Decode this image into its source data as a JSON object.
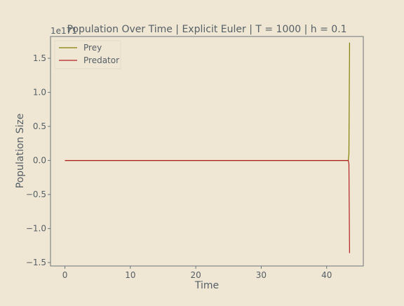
{
  "chart_data": {
    "type": "line",
    "title": "Population Over Time | Explicit Euler | T = 1000 | h = 0.1",
    "xlabel": "Time",
    "ylabel": "Population Size",
    "y_offset_text": "1e171",
    "xlim": [
      -2.2,
      45.6
    ],
    "ylim": [
      -1.55,
      1.82
    ],
    "x_ticks": [
      0,
      10,
      20,
      30,
      40
    ],
    "x_tick_labels": [
      "0",
      "10",
      "20",
      "30",
      "40"
    ],
    "y_ticks": [
      1.5,
      1.0,
      0.5,
      0.0,
      -0.5,
      -1.0,
      -1.5
    ],
    "y_tick_labels": [
      "1.5",
      "1.0",
      "0.5",
      "0.0",
      "−0.5",
      "−1.0",
      "−1.5"
    ],
    "grid": false,
    "legend_position": "upper-left",
    "series": [
      {
        "name": "Prey",
        "color": "#808000",
        "x": [
          0,
          43.3,
          43.4,
          43.5
        ],
        "y": [
          0.0,
          0.0,
          0.1,
          1.73
        ]
      },
      {
        "name": "Predator",
        "color": "#b22222",
        "x": [
          0,
          43.3,
          43.4,
          43.5
        ],
        "y": [
          0.0,
          0.0,
          -0.05,
          -1.36
        ]
      }
    ]
  }
}
